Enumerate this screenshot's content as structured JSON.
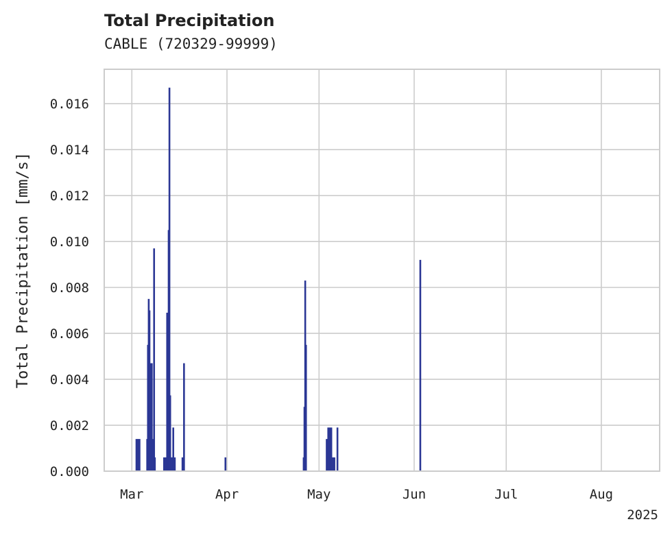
{
  "chart_data": {
    "type": "bar",
    "title": "Total Precipitation",
    "subtitle": "CABLE (720329-99999)",
    "xlabel": "",
    "ylabel": "Total Precipitation [mm/s]",
    "year_label": "2025",
    "ylim": [
      0,
      0.0175
    ],
    "xlim": [
      "2025-02-20",
      "2025-08-20"
    ],
    "grid": true,
    "colors": {
      "bar": "#2b3795",
      "grid": "#cccccc",
      "frame": "#cccccc"
    },
    "y_ticks": [
      {
        "value": 0.0,
        "label": "0.000"
      },
      {
        "value": 0.002,
        "label": "0.002"
      },
      {
        "value": 0.004,
        "label": "0.004"
      },
      {
        "value": 0.006,
        "label": "0.006"
      },
      {
        "value": 0.008,
        "label": "0.008"
      },
      {
        "value": 0.01,
        "label": "0.010"
      },
      {
        "value": 0.012,
        "label": "0.012"
      },
      {
        "value": 0.014,
        "label": "0.014"
      },
      {
        "value": 0.016,
        "label": "0.016"
      }
    ],
    "x_ticks": [
      {
        "date": "2025-03-01",
        "label": "Mar"
      },
      {
        "date": "2025-04-01",
        "label": "Apr"
      },
      {
        "date": "2025-05-01",
        "label": "May"
      },
      {
        "date": "2025-06-01",
        "label": "Jun"
      },
      {
        "date": "2025-07-01",
        "label": "Jul"
      },
      {
        "date": "2025-08-01",
        "label": "Aug"
      }
    ],
    "series": [
      {
        "points": [
          {
            "t": "2025-03-02T12:00",
            "v": 0.0014
          },
          {
            "t": "2025-03-03T00:00",
            "v": 0.0014
          },
          {
            "t": "2025-03-03T12:00",
            "v": 0.0014
          },
          {
            "t": "2025-03-06T00:00",
            "v": 0.0014
          },
          {
            "t": "2025-03-06T06:00",
            "v": 0.0055
          },
          {
            "t": "2025-03-06T12:00",
            "v": 0.0075
          },
          {
            "t": "2025-03-06T18:00",
            "v": 0.007
          },
          {
            "t": "2025-03-07T00:00",
            "v": 0.003
          },
          {
            "t": "2025-03-07T06:00",
            "v": 0.0047
          },
          {
            "t": "2025-03-07T12:00",
            "v": 0.0047
          },
          {
            "t": "2025-03-07T18:00",
            "v": 0.0014
          },
          {
            "t": "2025-03-08T06:00",
            "v": 0.0097
          },
          {
            "t": "2025-03-08T12:00",
            "v": 0.0006
          },
          {
            "t": "2025-03-11T12:00",
            "v": 0.0006
          },
          {
            "t": "2025-03-12T00:00",
            "v": 0.0006
          },
          {
            "t": "2025-03-12T12:00",
            "v": 0.0069
          },
          {
            "t": "2025-03-12T18:00",
            "v": 0.002
          },
          {
            "t": "2025-03-13T00:00",
            "v": 0.0105
          },
          {
            "t": "2025-03-13T06:00",
            "v": 0.0167
          },
          {
            "t": "2025-03-13T12:00",
            "v": 0.0033
          },
          {
            "t": "2025-03-13T18:00",
            "v": 0.0006
          },
          {
            "t": "2025-03-14T00:00",
            "v": 0.0006
          },
          {
            "t": "2025-03-14T12:00",
            "v": 0.0019
          },
          {
            "t": "2025-03-15T00:00",
            "v": 0.0006
          },
          {
            "t": "2025-03-17T12:00",
            "v": 0.0006
          },
          {
            "t": "2025-03-18T00:00",
            "v": 0.0047
          },
          {
            "t": "2025-03-31T12:00",
            "v": 0.0006
          },
          {
            "t": "2025-04-26T00:00",
            "v": 0.0006
          },
          {
            "t": "2025-04-26T06:00",
            "v": 0.0028
          },
          {
            "t": "2025-04-26T12:00",
            "v": 0.0083
          },
          {
            "t": "2025-04-26T18:00",
            "v": 0.0055
          },
          {
            "t": "2025-05-03T12:00",
            "v": 0.0014
          },
          {
            "t": "2025-05-04T00:00",
            "v": 0.0019
          },
          {
            "t": "2025-05-04T12:00",
            "v": 0.0019
          },
          {
            "t": "2025-05-04T18:00",
            "v": 0.0006
          },
          {
            "t": "2025-05-05T00:00",
            "v": 0.0019
          },
          {
            "t": "2025-05-05T12:00",
            "v": 0.0006
          },
          {
            "t": "2025-05-06T00:00",
            "v": 0.0006
          },
          {
            "t": "2025-05-07T00:00",
            "v": 0.0019
          },
          {
            "t": "2025-06-03T00:00",
            "v": 0.0092
          }
        ]
      }
    ]
  }
}
